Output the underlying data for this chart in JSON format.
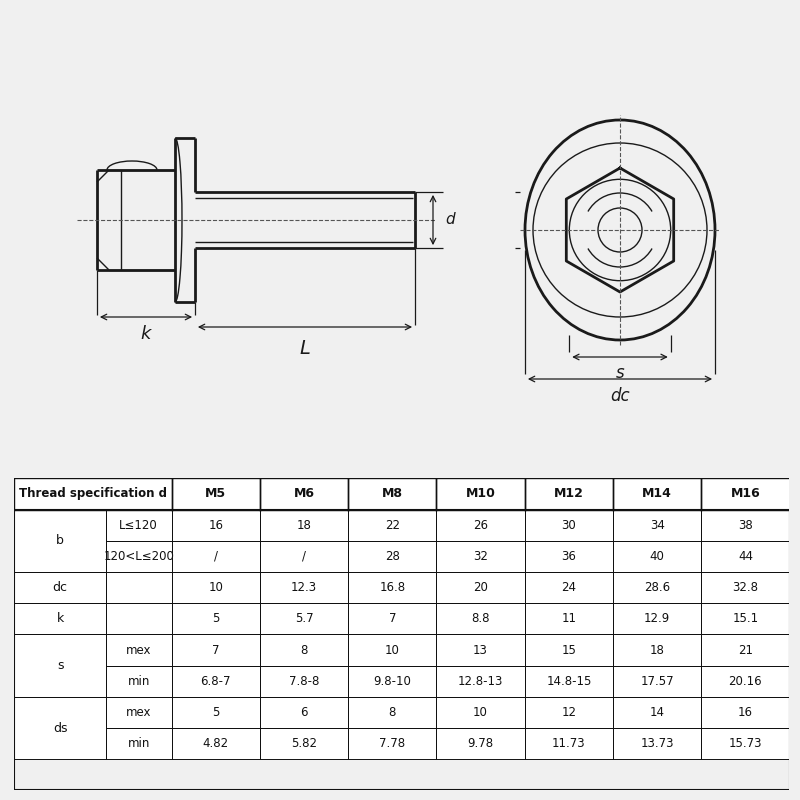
{
  "bg_color": "#f0f0f0",
  "table_header": [
    "Thread specification d",
    "M5",
    "M6",
    "M8",
    "M10",
    "M12",
    "M14",
    "M16"
  ],
  "table_rows": [
    [
      "b",
      "L≤120",
      "16",
      "18",
      "22",
      "26",
      "30",
      "34",
      "38"
    ],
    [
      "b",
      "120<L≤200",
      "/",
      "/",
      "28",
      "32",
      "36",
      "40",
      "44"
    ],
    [
      "dc",
      "",
      "10",
      "12.3",
      "16.8",
      "20",
      "24",
      "28.6",
      "32.8"
    ],
    [
      "k",
      "",
      "5",
      "5.7",
      "7",
      "8.8",
      "11",
      "12.9",
      "15.1"
    ],
    [
      "s",
      "mex",
      "7",
      "8",
      "10",
      "13",
      "15",
      "18",
      "21"
    ],
    [
      "s",
      "min",
      "6.8-7",
      "7.8-8",
      "9.8-10",
      "12.8-13",
      "14.8-15",
      "17.57",
      "20.16"
    ],
    [
      "ds",
      "mex",
      "5",
      "6",
      "8",
      "10",
      "12",
      "14",
      "16"
    ],
    [
      "ds",
      "min",
      "4.82",
      "5.82",
      "7.78",
      "9.78",
      "11.73",
      "13.73",
      "15.73"
    ]
  ],
  "line_color": "#1a1a1a",
  "dim_color": "#1a1a1a",
  "dash_color": "#555555",
  "drawing_bg": "#f0f0f0",
  "table_bg": "#ffffff",
  "header_bg": "#ffffff"
}
